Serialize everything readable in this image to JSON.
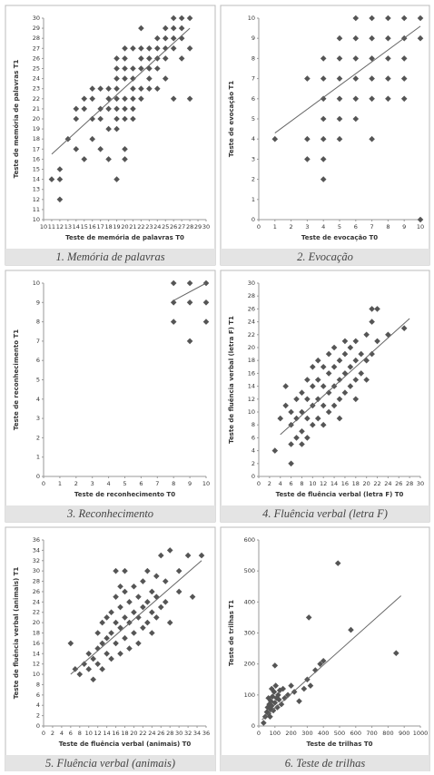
{
  "chart_data": [
    {
      "type": "scatter",
      "caption": "1. Memória de palavras",
      "xlabel": "Teste de memória de palavras T0",
      "ylabel": "Teste de memória de palavras T1",
      "x": [
        11,
        12,
        12,
        12,
        13,
        14,
        14,
        14,
        15,
        15,
        15,
        16,
        16,
        16,
        16,
        17,
        17,
        17,
        17,
        18,
        18,
        18,
        18,
        18,
        19,
        19,
        19,
        19,
        19,
        19,
        19,
        19,
        19,
        20,
        20,
        20,
        20,
        20,
        20,
        20,
        20,
        20,
        21,
        21,
        21,
        21,
        21,
        21,
        21,
        22,
        22,
        22,
        22,
        22,
        22,
        23,
        23,
        23,
        23,
        23,
        24,
        24,
        24,
        24,
        24,
        25,
        25,
        25,
        25,
        25,
        26,
        26,
        26,
        26,
        26,
        27,
        27,
        27,
        27,
        28,
        28,
        28
      ],
      "values": [
        14,
        14,
        15,
        12,
        18,
        20,
        21,
        17,
        21,
        22,
        16,
        23,
        22,
        20,
        18,
        23,
        21,
        20,
        17,
        23,
        22,
        21,
        19,
        16,
        26,
        25,
        24,
        23,
        22,
        21,
        20,
        19,
        14,
        27,
        26,
        25,
        24,
        22,
        21,
        20,
        17,
        16,
        27,
        25,
        24,
        23,
        22,
        21,
        20,
        29,
        27,
        26,
        25,
        23,
        22,
        27,
        26,
        25,
        24,
        23,
        28,
        27,
        26,
        25,
        23,
        29,
        28,
        27,
        26,
        24,
        30,
        29,
        28,
        27,
        22,
        30,
        29,
        28,
        26,
        30,
        27,
        22
      ],
      "trendline": {
        "x": [
          11,
          28
        ],
        "y": [
          16.5,
          29
        ]
      },
      "xlim": [
        10,
        30
      ],
      "xticks": [
        10,
        11,
        12,
        13,
        14,
        15,
        16,
        17,
        18,
        19,
        20,
        21,
        22,
        23,
        24,
        25,
        26,
        27,
        28,
        29,
        30
      ],
      "ylim": [
        10,
        30
      ],
      "yticks": [
        10,
        11,
        12,
        13,
        14,
        15,
        16,
        17,
        18,
        19,
        20,
        21,
        22,
        23,
        24,
        25,
        26,
        27,
        28,
        29,
        30
      ],
      "color": "#555555"
    },
    {
      "type": "scatter",
      "caption": "2. Evocação",
      "xlabel": "Teste de evocação T0",
      "ylabel": "Teste de evocação T1",
      "x": [
        1,
        3,
        3,
        3,
        4,
        4,
        4,
        4,
        4,
        4,
        4,
        5,
        5,
        5,
        5,
        5,
        5,
        6,
        6,
        6,
        6,
        6,
        6,
        7,
        7,
        7,
        7,
        7,
        7,
        8,
        8,
        8,
        8,
        8,
        9,
        9,
        9,
        9,
        9,
        10,
        10,
        10
      ],
      "values": [
        4,
        7,
        4,
        3,
        8,
        7,
        6,
        5,
        4,
        3,
        2,
        9,
        8,
        7,
        6,
        5,
        4,
        10,
        9,
        8,
        7,
        6,
        5,
        10,
        9,
        8,
        7,
        6,
        4,
        10,
        9,
        8,
        7,
        6,
        10,
        9,
        8,
        7,
        6,
        10,
        9,
        0
      ],
      "trendline": {
        "x": [
          1,
          10
        ],
        "y": [
          4.3,
          9.6
        ]
      },
      "xlim": [
        0,
        10
      ],
      "xticks": [
        0,
        1,
        2,
        3,
        4,
        5,
        6,
        7,
        8,
        9,
        10
      ],
      "ylim": [
        0,
        10
      ],
      "yticks": [
        0,
        1,
        2,
        3,
        4,
        5,
        6,
        7,
        8,
        9,
        10
      ],
      "color": "#555555"
    },
    {
      "type": "scatter",
      "caption": "3. Reconhecimento",
      "xlabel": "Teste de reconhecimento T0",
      "ylabel": "Teste de reconhecimento T1",
      "x": [
        8,
        8,
        8,
        9,
        9,
        9,
        10,
        10,
        10
      ],
      "values": [
        10,
        9,
        8,
        10,
        9,
        7,
        10,
        9,
        8
      ],
      "trendline": {
        "x": [
          8,
          10
        ],
        "y": [
          9.1,
          10
        ]
      },
      "xlim": [
        0,
        10
      ],
      "xticks": [
        0,
        1,
        2,
        3,
        4,
        5,
        6,
        7,
        8,
        9,
        10
      ],
      "ylim": [
        0,
        10
      ],
      "yticks": [
        0,
        1,
        2,
        3,
        4,
        5,
        6,
        7,
        8,
        9,
        10
      ],
      "color": "#555555"
    },
    {
      "type": "scatter",
      "caption": "4. Fluência verbal (letra F)",
      "xlabel": "Teste de fluência verbal (letra F) T0",
      "ylabel": "Teste de fluência verbal (letra F) T1",
      "x": [
        3,
        4,
        5,
        5,
        6,
        6,
        6,
        6,
        7,
        7,
        7,
        8,
        8,
        8,
        8,
        9,
        9,
        9,
        9,
        10,
        10,
        10,
        10,
        11,
        11,
        11,
        11,
        12,
        12,
        12,
        12,
        13,
        13,
        13,
        13,
        14,
        14,
        14,
        14,
        15,
        15,
        15,
        15,
        16,
        16,
        16,
        16,
        17,
        17,
        17,
        18,
        18,
        18,
        18,
        19,
        19,
        20,
        20,
        20,
        21,
        21,
        21,
        22,
        22,
        24,
        27
      ],
      "values": [
        4,
        9,
        11,
        14,
        2,
        5,
        8,
        10,
        6,
        9,
        12,
        5,
        7,
        10,
        13,
        6,
        9,
        12,
        15,
        8,
        11,
        14,
        17,
        9,
        12,
        15,
        18,
        8,
        11,
        14,
        17,
        10,
        13,
        16,
        19,
        11,
        14,
        17,
        20,
        9,
        12,
        15,
        18,
        13,
        16,
        19,
        21,
        14,
        17,
        20,
        12,
        15,
        18,
        21,
        16,
        19,
        15,
        18,
        22,
        19,
        24,
        26,
        21,
        26,
        22,
        23
      ],
      "trendline": {
        "x": [
          4,
          28
        ],
        "y": [
          6.5,
          24.5
        ]
      },
      "xlim": [
        0,
        30
      ],
      "xticks": [
        0,
        2,
        4,
        6,
        8,
        10,
        12,
        14,
        16,
        18,
        20,
        22,
        24,
        26,
        28,
        30
      ],
      "ylim": [
        0,
        30
      ],
      "yticks": [
        0,
        2,
        4,
        6,
        8,
        10,
        12,
        14,
        16,
        18,
        20,
        22,
        24,
        26,
        28,
        30
      ],
      "color": "#555555"
    },
    {
      "type": "scatter",
      "caption": "5. Fluência verbal (animais)",
      "xlabel": "Teste de fluência verbal (animais) T0",
      "ylabel": "Teste de fluência verbal (animais) T1",
      "x": [
        6,
        7,
        8,
        9,
        10,
        10,
        11,
        11,
        12,
        12,
        12,
        13,
        13,
        13,
        14,
        14,
        14,
        15,
        15,
        15,
        16,
        16,
        16,
        16,
        17,
        17,
        17,
        17,
        18,
        18,
        18,
        18,
        19,
        19,
        19,
        20,
        20,
        20,
        21,
        21,
        21,
        22,
        22,
        22,
        23,
        23,
        23,
        24,
        24,
        24,
        25,
        25,
        25,
        26,
        26,
        27,
        27,
        28,
        28,
        30,
        30,
        32,
        33,
        35
      ],
      "values": [
        16,
        11,
        10,
        12,
        14,
        11,
        13,
        9,
        15,
        12,
        18,
        16,
        11,
        20,
        14,
        17,
        21,
        13,
        18,
        22,
        16,
        20,
        25,
        30,
        14,
        19,
        23,
        27,
        17,
        21,
        26,
        30,
        15,
        20,
        24,
        18,
        22,
        27,
        16,
        21,
        25,
        19,
        23,
        28,
        20,
        24,
        30,
        18,
        22,
        26,
        21,
        25,
        29,
        23,
        33,
        24,
        28,
        34,
        20,
        30,
        26,
        33,
        25,
        33
      ],
      "trendline": {
        "x": [
          6,
          35
        ],
        "y": [
          10,
          32
        ]
      },
      "xlim": [
        0,
        36
      ],
      "xticks": [
        0,
        2,
        4,
        6,
        8,
        10,
        12,
        14,
        16,
        18,
        20,
        22,
        24,
        26,
        28,
        30,
        32,
        34,
        36
      ],
      "ylim": [
        0,
        36
      ],
      "yticks": [
        0,
        2,
        4,
        6,
        8,
        10,
        12,
        14,
        16,
        18,
        20,
        22,
        24,
        26,
        28,
        30,
        32,
        34,
        36
      ],
      "color": "#555555"
    },
    {
      "type": "scatter",
      "caption": "6. Teste de trilhas",
      "xlabel": "Teste de trilhas T0",
      "ylabel": "Teste de trilhas T1",
      "x": [
        40,
        50,
        55,
        60,
        65,
        70,
        75,
        80,
        85,
        90,
        95,
        100,
        105,
        110,
        115,
        120,
        125,
        130,
        140,
        150,
        160,
        180,
        200,
        220,
        250,
        280,
        300,
        320,
        350,
        380,
        100,
        310,
        400,
        490,
        570,
        850,
        30,
        60,
        80,
        70
      ],
      "values": [
        30,
        45,
        60,
        40,
        70,
        55,
        80,
        65,
        95,
        50,
        110,
        75,
        130,
        90,
        60,
        100,
        85,
        115,
        70,
        120,
        90,
        100,
        130,
        110,
        80,
        120,
        150,
        130,
        180,
        200,
        195,
        350,
        210,
        525,
        310,
        235,
        10,
        90,
        120,
        30
      ],
      "trendline": {
        "x": [
          20,
          880
        ],
        "y": [
          20,
          420
        ]
      },
      "xlim": [
        0,
        1000
      ],
      "xticks": [
        0,
        100,
        200,
        300,
        400,
        500,
        600,
        700,
        800,
        900,
        1000
      ],
      "ylim": [
        0,
        600
      ],
      "yticks": [
        0,
        100,
        200,
        300,
        400,
        500,
        600
      ],
      "color": "#555555"
    }
  ]
}
